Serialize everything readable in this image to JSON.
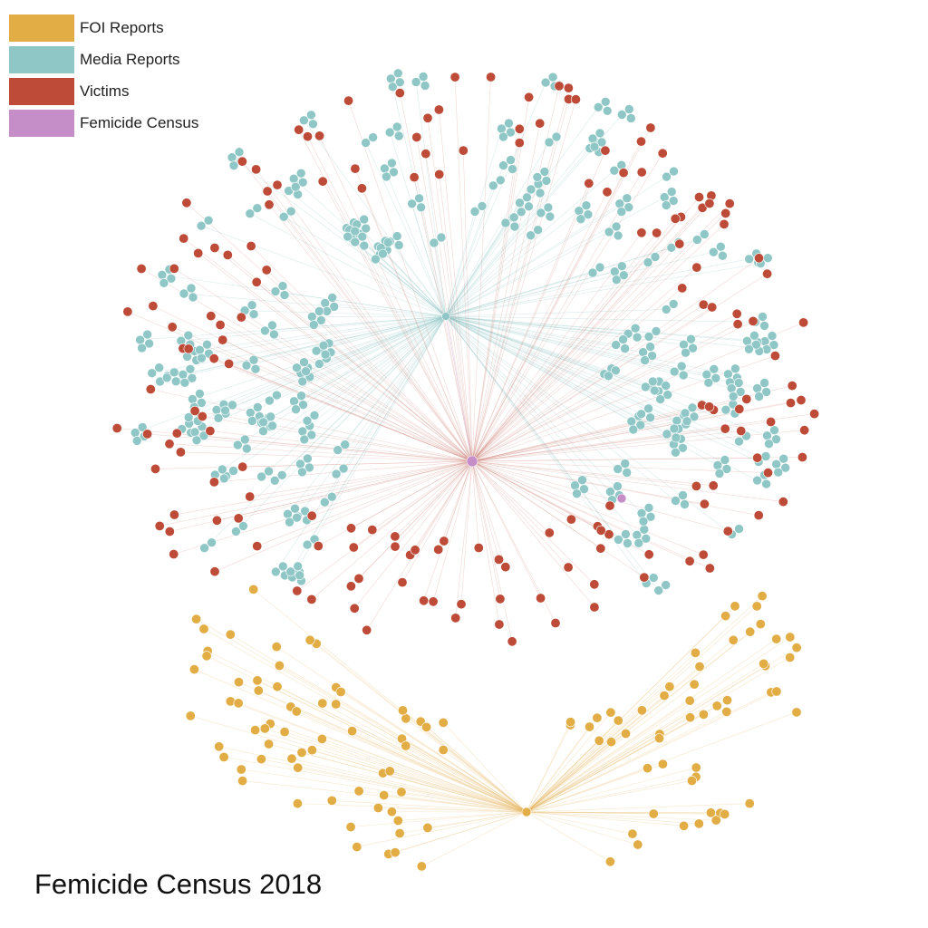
{
  "legend": {
    "items": [
      {
        "label": "FOI Reports",
        "color": "#e2ad45",
        "key": "foi"
      },
      {
        "label": "Media Reports",
        "color": "#8fc6c6",
        "key": "media"
      },
      {
        "label": "Victims",
        "color": "#bd4b37",
        "key": "victim"
      },
      {
        "label": "Femicide Census",
        "color": "#c58ec8",
        "key": "census"
      }
    ]
  },
  "title": {
    "main": "Femicide Census",
    "year": "2018"
  },
  "colors": {
    "foi": "#e2ad45",
    "media": "#8fc6c6",
    "victim": "#bd4b37",
    "census": "#c58ec8",
    "edge_media": "#8fc6c6",
    "edge_victim": "#c97468",
    "edge_foi": "#e8b96a",
    "edge_census": "#c58ec8"
  }
}
